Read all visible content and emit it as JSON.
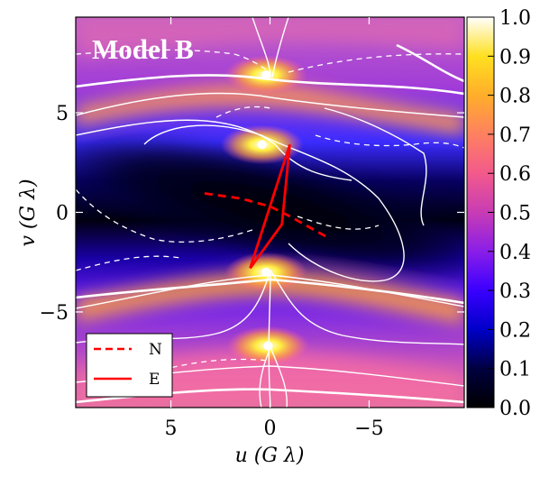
{
  "chart_data": {
    "type": "heatmap",
    "title": "Model B",
    "xlabel": "u (G λ)",
    "ylabel": "v (G λ)",
    "x_direction": "decreasing to the right",
    "xlim": [
      9.8,
      -9.8
    ],
    "ylim": [
      -9.8,
      9.8
    ],
    "x_ticks": [
      5,
      0,
      -5
    ],
    "x_tick_labels": [
      "5",
      "0",
      "−5"
    ],
    "y_ticks": [
      5,
      0,
      -5
    ],
    "y_tick_labels": [
      "5",
      "0",
      "−5"
    ],
    "colormap": "gnuplot2 (black → blue → purple → pink → yellow → white)",
    "colorbar": {
      "range": [
        0.0,
        1.0
      ],
      "ticks": [
        0.0,
        0.1,
        0.2,
        0.3,
        0.4,
        0.5,
        0.6,
        0.7,
        0.8,
        0.9,
        1.0
      ],
      "tick_labels": [
        "0.0",
        "0.1",
        "0.2",
        "0.3",
        "0.4",
        "0.5",
        "0.6",
        "0.7",
        "0.8",
        "0.9",
        "1.0"
      ]
    },
    "features": {
      "bright_peaks_uv": [
        [
          0.2,
          6.9
        ],
        [
          0.4,
          3.4
        ],
        [
          0.2,
          -3.0
        ],
        [
          0.1,
          -6.7
        ]
      ],
      "dark_band": "low values (~0) along a band from upper-left through center to lower-right"
    },
    "series": [
      {
        "name": "N",
        "style": "dashed",
        "color": "#ff0000",
        "points": [
          [
            3.3,
            0.95
          ],
          [
            1.5,
            0.7
          ],
          [
            0.0,
            0.3
          ],
          [
            -1.0,
            -0.2
          ],
          [
            -2.8,
            -1.2
          ]
        ]
      },
      {
        "name": "E",
        "style": "solid",
        "color": "#ff0000",
        "points": [
          [
            1.0,
            -2.8
          ],
          [
            -1.0,
            3.4
          ],
          [
            -0.6,
            -0.6
          ],
          [
            1.0,
            -2.8
          ]
        ]
      }
    ],
    "legend": {
      "placement": "bottom-left",
      "entries": [
        "N",
        "E"
      ]
    }
  }
}
